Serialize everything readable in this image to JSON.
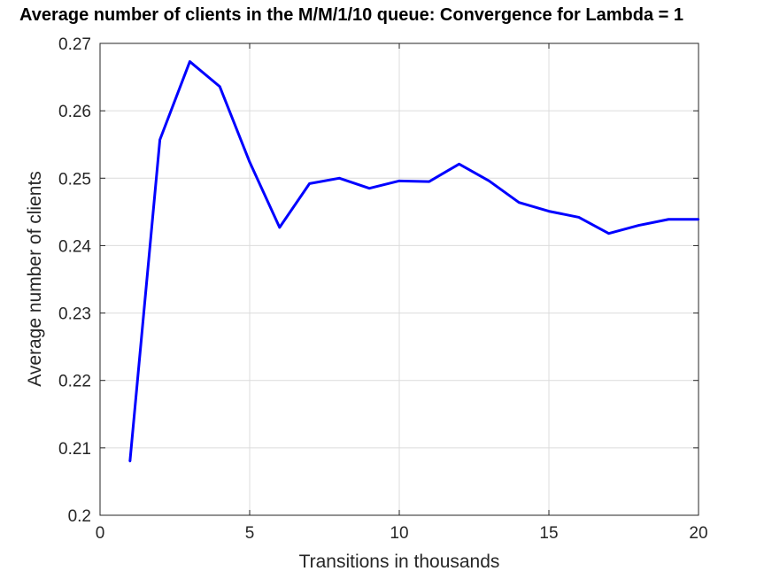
{
  "chart_data": {
    "type": "line",
    "title": "Average number of clients in the M/M/1/10 queue: Convergence for Lambda = 1",
    "xlabel": "Transitions in thousands",
    "ylabel": "Average number of clients",
    "xlim": [
      0,
      20
    ],
    "ylim": [
      0.2,
      0.27
    ],
    "xticks": [
      0,
      5,
      10,
      15,
      20
    ],
    "xtick_labels": [
      "0",
      "5",
      "10",
      "15",
      "20"
    ],
    "yticks": [
      0.2,
      0.21,
      0.22,
      0.23,
      0.24,
      0.25,
      0.26,
      0.27
    ],
    "ytick_labels": [
      "0.2",
      "0.21",
      "0.22",
      "0.23",
      "0.24",
      "0.25",
      "0.26",
      "0.27"
    ],
    "grid": true,
    "series": [
      {
        "color": "#0000ff",
        "x": [
          1,
          2,
          3,
          4,
          5,
          6,
          7,
          8,
          9,
          10,
          11,
          12,
          13,
          14,
          15,
          16,
          17,
          18,
          19,
          20
        ],
        "y": [
          0.208,
          0.2557,
          0.2673,
          0.2636,
          0.2524,
          0.2427,
          0.2492,
          0.25,
          0.2485,
          0.2496,
          0.2495,
          0.2521,
          0.2496,
          0.2464,
          0.2451,
          0.2442,
          0.2418,
          0.243,
          0.2439,
          0.2439
        ]
      }
    ]
  }
}
